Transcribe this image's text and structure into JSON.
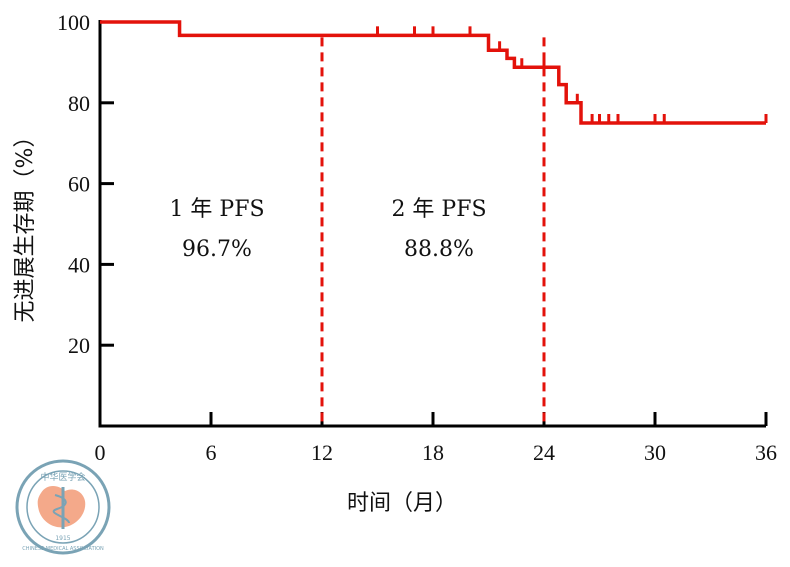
{
  "chart_data": {
    "type": "line",
    "xlabel": "时间（月）",
    "ylabel": "无进展生存期（%）",
    "xlim": [
      0,
      36
    ],
    "ylim": [
      0,
      100
    ],
    "x_ticks": [
      0,
      6,
      12,
      18,
      24,
      30,
      36
    ],
    "y_ticks": [
      20,
      40,
      60,
      80,
      100
    ],
    "grid": false,
    "series": [
      {
        "color": "#e3120b",
        "step": [
          {
            "x": 0,
            "y": 100
          },
          {
            "x": 4.3,
            "y": 96.7
          },
          {
            "x": 21,
            "y": 93
          },
          {
            "x": 22,
            "y": 91
          },
          {
            "x": 22.4,
            "y": 88.8
          },
          {
            "x": 24.8,
            "y": 84.5
          },
          {
            "x": 25.2,
            "y": 80
          },
          {
            "x": 26,
            "y": 75
          },
          {
            "x": 36,
            "y": 75
          }
        ],
        "censored": [
          {
            "x": 15,
            "y": 96.7
          },
          {
            "x": 17,
            "y": 96.7
          },
          {
            "x": 18,
            "y": 96.7
          },
          {
            "x": 20,
            "y": 96.7
          },
          {
            "x": 21.6,
            "y": 93
          },
          {
            "x": 22.8,
            "y": 88.8
          },
          {
            "x": 24,
            "y": 88.8
          },
          {
            "x": 25.8,
            "y": 80
          },
          {
            "x": 26.6,
            "y": 75
          },
          {
            "x": 27,
            "y": 75
          },
          {
            "x": 27.5,
            "y": 75
          },
          {
            "x": 28,
            "y": 75
          },
          {
            "x": 30,
            "y": 75
          },
          {
            "x": 30.5,
            "y": 75
          },
          {
            "x": 36,
            "y": 75
          }
        ]
      }
    ],
    "reference_lines": [
      {
        "x": 12,
        "color": "#e3120b",
        "style": "dashed"
      },
      {
        "x": 24,
        "color": "#e3120b",
        "style": "dashed"
      }
    ],
    "annotations": [
      {
        "label": "1 年 PFS",
        "value": "96.7%",
        "x": 6,
        "y": 52
      },
      {
        "label": "2 年 PFS",
        "value": "88.8%",
        "x": 18,
        "y": 52
      }
    ]
  },
  "logo": {
    "text_cn": "中华医学会",
    "text_en": "CHINESE MEDICAL ASSOCIATION",
    "year": "1915",
    "color": "#7aa3b5",
    "accent": "#f4a98a"
  }
}
